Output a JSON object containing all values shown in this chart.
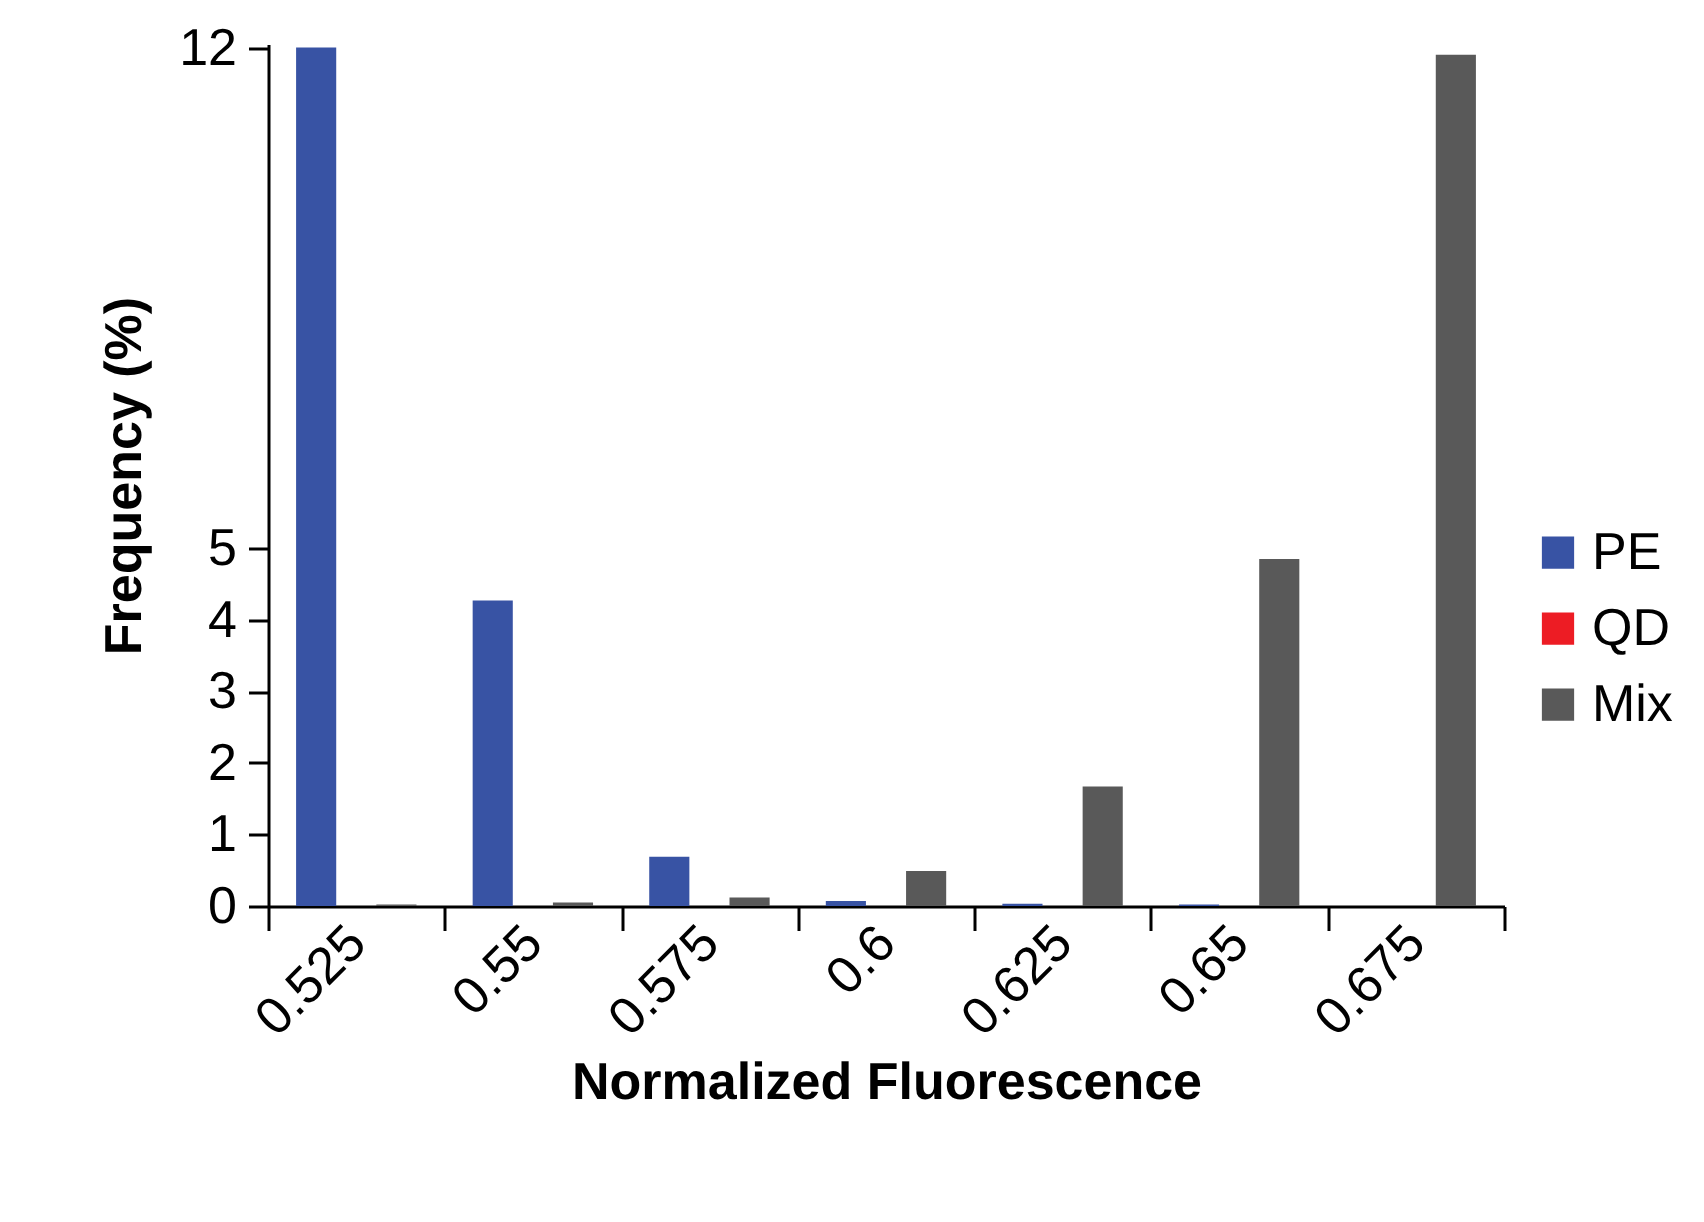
{
  "chart_data": [
    {
      "type": "bar",
      "categories": [
        "0.525",
        "0.55",
        "0.575",
        "0.6",
        "0.625",
        "0.65",
        "0.675"
      ],
      "xlabel": "Normalized Fluorescence",
      "ylabel": "Frequency (%)",
      "series": [
        {
          "name": "PE",
          "color": "#3853a4",
          "values": [
            12,
            4.27,
            0.69,
            0.07,
            0.03,
            0.02,
            0
          ]
        },
        {
          "name": "QD",
          "color": "#ed1c24",
          "values": [
            0,
            0,
            0,
            0,
            0,
            0,
            0
          ]
        },
        {
          "name": "Mix",
          "color": "#595959",
          "values": [
            0.02,
            0.05,
            0.12,
            0.49,
            1.67,
            4.85,
            11.9
          ]
        }
      ],
      "ylim": [
        0,
        12.05
      ],
      "yticks": [
        0,
        1,
        2,
        3,
        4,
        5,
        12
      ],
      "grid": false,
      "legend": "right"
    }
  ]
}
